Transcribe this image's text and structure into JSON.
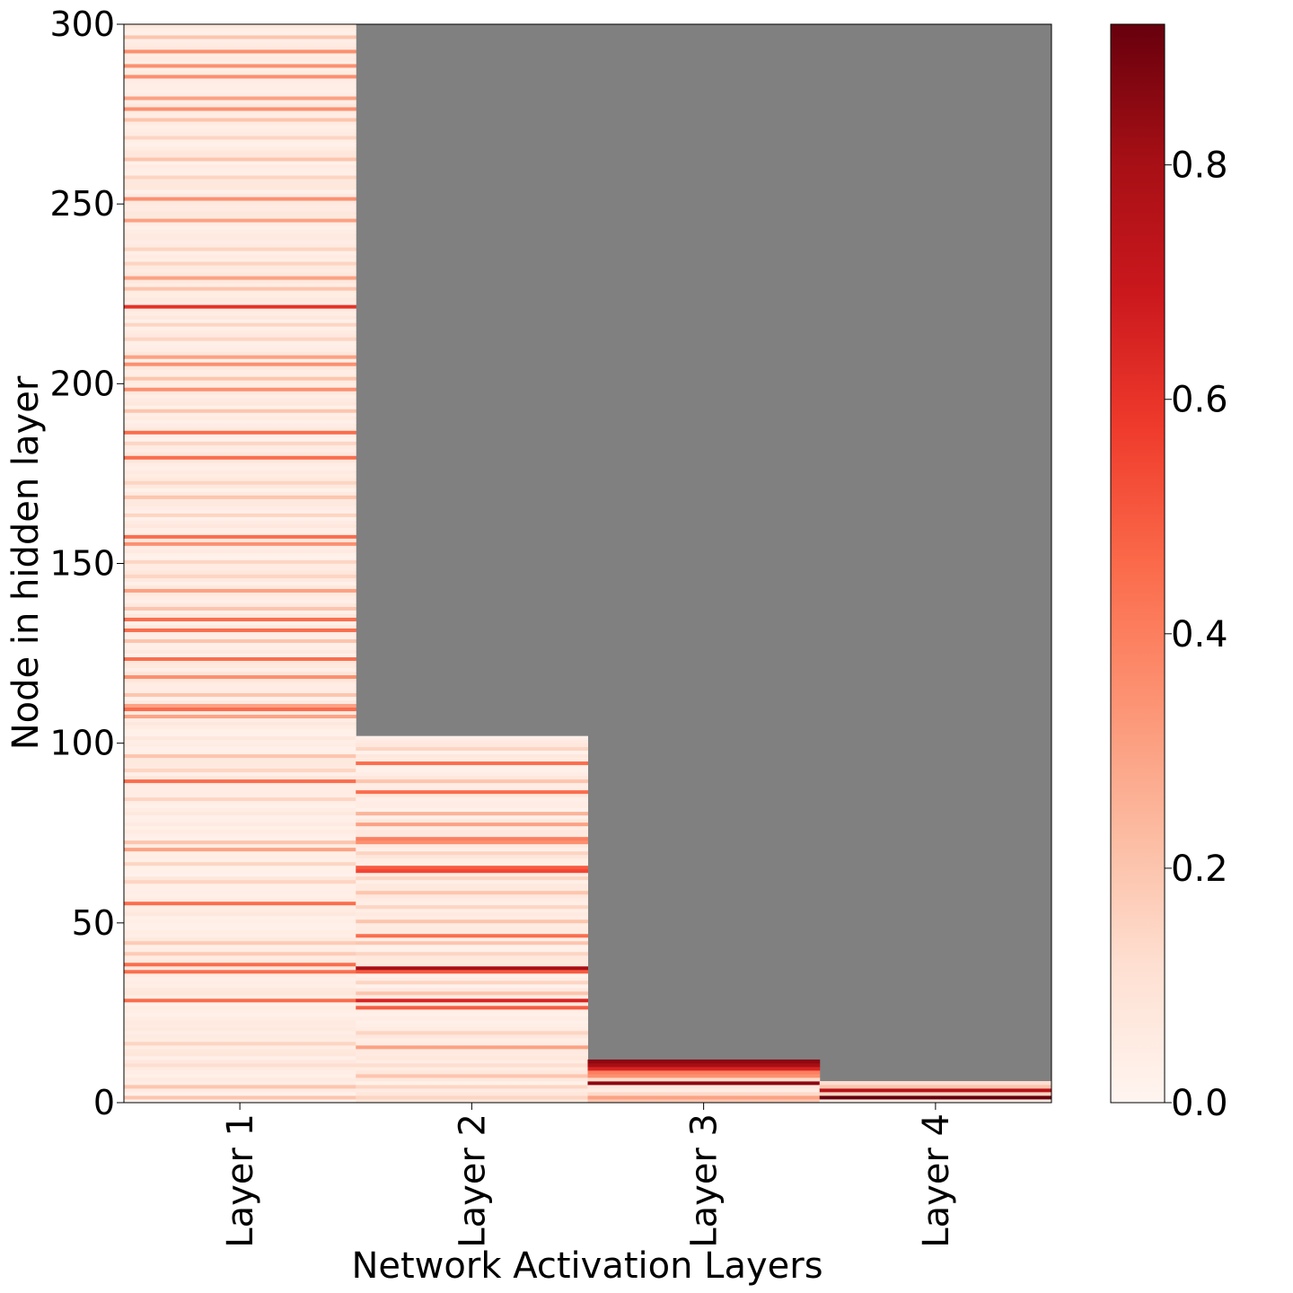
{
  "chart_data": {
    "type": "heatmap",
    "title": "",
    "xlabel": "Network Activation Layers",
    "ylabel": "Node in hidden layer",
    "categories": [
      "Layer 1",
      "Layer 2",
      "Layer 3",
      "Layer 4"
    ],
    "ylim": [
      0,
      300
    ],
    "yticks": [
      0,
      50,
      100,
      150,
      200,
      250,
      300
    ],
    "yticklabels": [
      "0",
      "50",
      "100",
      "150",
      "200",
      "250",
      "300"
    ],
    "missing_color": "#808080",
    "colormap": "Reds",
    "colorbar": {
      "vmin": 0.0,
      "vmax": 0.92,
      "ticks": [
        0.0,
        0.2,
        0.4,
        0.6,
        0.8
      ],
      "ticklabels": [
        "0.0",
        "0.2",
        "0.4",
        "0.6",
        "0.8"
      ]
    },
    "series": [
      {
        "node_count": 300,
        "base_value": 0.04,
        "notable_nodes": [
          {
            "node": 1,
            "value": 0.2
          },
          {
            "node": 4,
            "value": 0.2
          },
          {
            "node": 10,
            "value": 0.12
          },
          {
            "node": 16,
            "value": 0.15
          },
          {
            "node": 28,
            "value": 0.45
          },
          {
            "node": 36,
            "value": 0.45
          },
          {
            "node": 38,
            "value": 0.45
          },
          {
            "node": 41,
            "value": 0.18
          },
          {
            "node": 44,
            "value": 0.18
          },
          {
            "node": 55,
            "value": 0.45
          },
          {
            "node": 61,
            "value": 0.15
          },
          {
            "node": 66,
            "value": 0.15
          },
          {
            "node": 70,
            "value": 0.3
          },
          {
            "node": 72,
            "value": 0.2
          },
          {
            "node": 84,
            "value": 0.15
          },
          {
            "node": 89,
            "value": 0.45
          },
          {
            "node": 92,
            "value": 0.15
          },
          {
            "node": 96,
            "value": 0.2
          },
          {
            "node": 107,
            "value": 0.3
          },
          {
            "node": 109,
            "value": 0.45
          },
          {
            "node": 110,
            "value": 0.3
          },
          {
            "node": 113,
            "value": 0.2
          },
          {
            "node": 118,
            "value": 0.35
          },
          {
            "node": 123,
            "value": 0.45
          },
          {
            "node": 128,
            "value": 0.2
          },
          {
            "node": 131,
            "value": 0.45
          },
          {
            "node": 134,
            "value": 0.45
          },
          {
            "node": 137,
            "value": 0.2
          },
          {
            "node": 142,
            "value": 0.3
          },
          {
            "node": 146,
            "value": 0.15
          },
          {
            "node": 150,
            "value": 0.15
          },
          {
            "node": 155,
            "value": 0.35
          },
          {
            "node": 157,
            "value": 0.45
          },
          {
            "node": 163,
            "value": 0.15
          },
          {
            "node": 168,
            "value": 0.2
          },
          {
            "node": 172,
            "value": 0.15
          },
          {
            "node": 179,
            "value": 0.45
          },
          {
            "node": 183,
            "value": 0.15
          },
          {
            "node": 186,
            "value": 0.45
          },
          {
            "node": 192,
            "value": 0.2
          },
          {
            "node": 198,
            "value": 0.35
          },
          {
            "node": 201,
            "value": 0.2
          },
          {
            "node": 205,
            "value": 0.35
          },
          {
            "node": 207,
            "value": 0.3
          },
          {
            "node": 212,
            "value": 0.15
          },
          {
            "node": 216,
            "value": 0.15
          },
          {
            "node": 221,
            "value": 0.6
          },
          {
            "node": 226,
            "value": 0.2
          },
          {
            "node": 229,
            "value": 0.3
          },
          {
            "node": 233,
            "value": 0.15
          },
          {
            "node": 237,
            "value": 0.15
          },
          {
            "node": 245,
            "value": 0.3
          },
          {
            "node": 251,
            "value": 0.35
          },
          {
            "node": 257,
            "value": 0.15
          },
          {
            "node": 262,
            "value": 0.2
          },
          {
            "node": 268,
            "value": 0.15
          },
          {
            "node": 273,
            "value": 0.2
          },
          {
            "node": 276,
            "value": 0.35
          },
          {
            "node": 279,
            "value": 0.3
          },
          {
            "node": 285,
            "value": 0.35
          },
          {
            "node": 288,
            "value": 0.35
          },
          {
            "node": 292,
            "value": 0.35
          },
          {
            "node": 296,
            "value": 0.2
          }
        ]
      },
      {
        "node_count": 102,
        "base_value": 0.04,
        "notable_nodes": [
          {
            "node": 1,
            "value": 0.15
          },
          {
            "node": 4,
            "value": 0.15
          },
          {
            "node": 7,
            "value": 0.2
          },
          {
            "node": 10,
            "value": 0.12
          },
          {
            "node": 15,
            "value": 0.3
          },
          {
            "node": 19,
            "value": 0.15
          },
          {
            "node": 26,
            "value": 0.5
          },
          {
            "node": 28,
            "value": 0.65
          },
          {
            "node": 30,
            "value": 0.2
          },
          {
            "node": 33,
            "value": 0.15
          },
          {
            "node": 36,
            "value": 0.5
          },
          {
            "node": 37,
            "value": 0.8
          },
          {
            "node": 41,
            "value": 0.15
          },
          {
            "node": 44,
            "value": 0.2
          },
          {
            "node": 46,
            "value": 0.45
          },
          {
            "node": 50,
            "value": 0.2
          },
          {
            "node": 54,
            "value": 0.15
          },
          {
            "node": 58,
            "value": 0.2
          },
          {
            "node": 62,
            "value": 0.15
          },
          {
            "node": 64,
            "value": 0.55
          },
          {
            "node": 65,
            "value": 0.5
          },
          {
            "node": 69,
            "value": 0.15
          },
          {
            "node": 72,
            "value": 0.35
          },
          {
            "node": 73,
            "value": 0.4
          },
          {
            "node": 77,
            "value": 0.3
          },
          {
            "node": 80,
            "value": 0.25
          },
          {
            "node": 86,
            "value": 0.45
          },
          {
            "node": 89,
            "value": 0.2
          },
          {
            "node": 94,
            "value": 0.45
          },
          {
            "node": 98,
            "value": 0.15
          }
        ]
      },
      {
        "node_count": 12,
        "base_value": 0.1,
        "notable_nodes": [
          {
            "node": 1,
            "value": 0.3
          },
          {
            "node": 3,
            "value": 0.05
          },
          {
            "node": 5,
            "value": 0.85
          },
          {
            "node": 7,
            "value": 0.35
          },
          {
            "node": 8,
            "value": 0.4
          },
          {
            "node": 9,
            "value": 0.65
          },
          {
            "node": 10,
            "value": 0.8
          },
          {
            "node": 11,
            "value": 0.85
          }
        ]
      },
      {
        "node_count": 6,
        "base_value": 0.1,
        "notable_nodes": [
          {
            "node": 0,
            "value": 0.05
          },
          {
            "node": 1,
            "value": 0.92
          },
          {
            "node": 2,
            "value": 0.15
          },
          {
            "node": 3,
            "value": 0.75
          },
          {
            "node": 4,
            "value": 0.2
          },
          {
            "node": 5,
            "value": 0.12
          }
        ]
      }
    ]
  }
}
